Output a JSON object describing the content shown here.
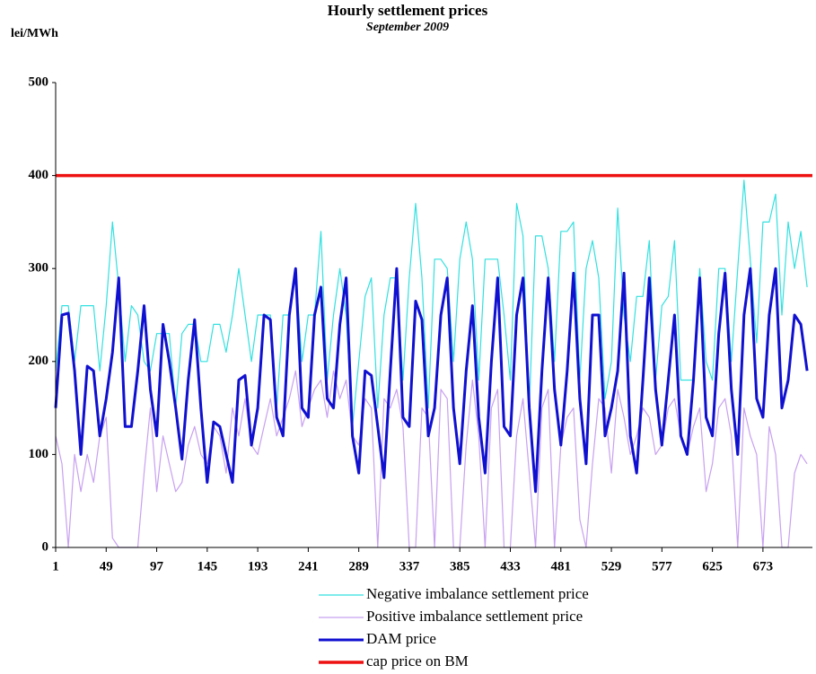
{
  "chart_data": {
    "type": "line",
    "title": "Hourly settlement prices",
    "subtitle": "September 2009",
    "y_label": "lei/MWh",
    "xlim": [
      1,
      720
    ],
    "xticks": [
      1,
      49,
      97,
      145,
      193,
      241,
      289,
      337,
      385,
      433,
      481,
      529,
      577,
      625,
      673
    ],
    "ylim": [
      0,
      500
    ],
    "yticks": [
      0,
      100,
      200,
      300,
      400,
      500
    ],
    "grid": false,
    "x": [
      1,
      7,
      13,
      19,
      25,
      31,
      37,
      43,
      49,
      55,
      61,
      67,
      73,
      79,
      85,
      91,
      97,
      103,
      109,
      115,
      121,
      127,
      133,
      139,
      145,
      151,
      157,
      163,
      169,
      175,
      181,
      187,
      193,
      199,
      205,
      211,
      217,
      223,
      229,
      235,
      241,
      247,
      253,
      259,
      265,
      271,
      277,
      283,
      289,
      295,
      301,
      307,
      313,
      319,
      325,
      331,
      337,
      343,
      349,
      355,
      361,
      367,
      373,
      379,
      385,
      391,
      397,
      403,
      409,
      415,
      421,
      427,
      433,
      439,
      445,
      451,
      457,
      463,
      469,
      475,
      481,
      487,
      493,
      499,
      505,
      511,
      517,
      523,
      529,
      535,
      541,
      547,
      553,
      559,
      565,
      571,
      577,
      583,
      589,
      595,
      601,
      607,
      613,
      619,
      625,
      631,
      637,
      643,
      649,
      655,
      661,
      667,
      673,
      679,
      685,
      691,
      697,
      703,
      709,
      715
    ],
    "series": [
      {
        "name": "Negative imbalance settlement price",
        "color": "#33e0e0",
        "width": 1.2,
        "values": [
          190,
          260,
          260,
          200,
          260,
          260,
          260,
          190,
          260,
          350,
          280,
          200,
          260,
          250,
          200,
          190,
          230,
          230,
          230,
          150,
          230,
          240,
          240,
          200,
          200,
          240,
          240,
          210,
          250,
          300,
          250,
          200,
          250,
          250,
          250,
          150,
          250,
          250,
          300,
          200,
          250,
          250,
          340,
          180,
          250,
          300,
          250,
          130,
          200,
          270,
          290,
          150,
          250,
          290,
          290,
          180,
          290,
          370,
          290,
          150,
          310,
          310,
          300,
          200,
          310,
          350,
          310,
          180,
          310,
          310,
          310,
          250,
          180,
          370,
          335,
          150,
          335,
          335,
          300,
          200,
          340,
          340,
          350,
          180,
          300,
          330,
          290,
          160,
          200,
          365,
          250,
          200,
          270,
          270,
          330,
          180,
          260,
          270,
          330,
          180,
          180,
          180,
          300,
          200,
          180,
          300,
          300,
          200,
          300,
          395,
          310,
          220,
          350,
          350,
          380,
          250,
          350,
          300,
          340,
          280
        ]
      },
      {
        "name": "Positive imbalance settlement price",
        "color": "#c8a0f0",
        "width": 1.2,
        "values": [
          120,
          90,
          0,
          100,
          60,
          100,
          70,
          120,
          140,
          10,
          0,
          0,
          0,
          0,
          80,
          150,
          60,
          120,
          90,
          60,
          70,
          110,
          130,
          100,
          90,
          130,
          120,
          80,
          150,
          120,
          160,
          110,
          100,
          130,
          160,
          120,
          140,
          160,
          190,
          130,
          150,
          170,
          180,
          140,
          190,
          160,
          180,
          120,
          110,
          160,
          150,
          0,
          160,
          150,
          170,
          130,
          0,
          0,
          150,
          140,
          0,
          170,
          160,
          0,
          0,
          110,
          180,
          120,
          0,
          150,
          170,
          0,
          0,
          120,
          160,
          80,
          0,
          150,
          170,
          0,
          110,
          140,
          150,
          30,
          0,
          90,
          160,
          150,
          80,
          170,
          140,
          100,
          120,
          150,
          140,
          100,
          110,
          150,
          160,
          120,
          100,
          130,
          150,
          60,
          90,
          150,
          160,
          120,
          0,
          150,
          120,
          100,
          0,
          130,
          100,
          0,
          0,
          80,
          100,
          90
        ]
      },
      {
        "name": "DAM price",
        "color": "#1010d0",
        "width": 3,
        "values": [
          150,
          250,
          252,
          190,
          100,
          195,
          190,
          120,
          160,
          210,
          290,
          130,
          130,
          190,
          260,
          170,
          120,
          240,
          200,
          150,
          95,
          180,
          245,
          150,
          70,
          135,
          130,
          100,
          70,
          180,
          185,
          110,
          150,
          250,
          245,
          140,
          120,
          250,
          300,
          150,
          140,
          250,
          280,
          160,
          150,
          240,
          290,
          120,
          80,
          190,
          185,
          130,
          75,
          190,
          300,
          140,
          130,
          265,
          245,
          120,
          150,
          250,
          290,
          150,
          90,
          190,
          260,
          140,
          80,
          200,
          290,
          130,
          120,
          250,
          290,
          150,
          60,
          190,
          290,
          170,
          110,
          190,
          295,
          160,
          90,
          250,
          250,
          120,
          150,
          190,
          295,
          120,
          80,
          180,
          290,
          170,
          110,
          180,
          250,
          120,
          100,
          180,
          290,
          140,
          120,
          230,
          295,
          170,
          100,
          250,
          300,
          160,
          140,
          250,
          300,
          150,
          180,
          250,
          240,
          190
        ]
      },
      {
        "name": "cap price on BM",
        "color": "#ee1111",
        "width": 3.5,
        "x": [
          1,
          720
        ],
        "values": [
          400,
          400
        ]
      }
    ]
  }
}
